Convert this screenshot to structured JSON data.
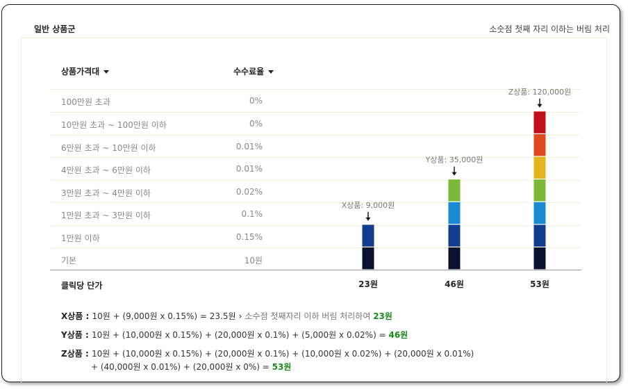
{
  "header": {
    "title": "일반 상품군",
    "note": "소숫점 첫째 자리 이하는 버림 처리"
  },
  "table": {
    "col_range": "상품가격대",
    "col_rate": "수수료율",
    "rows": [
      {
        "range": "100만원 초과",
        "rate": "0%"
      },
      {
        "range": "10만원 초과 ~ 100만원 이하",
        "rate": "0%"
      },
      {
        "range": "6만원 초과 ~ 10만원 이하",
        "rate": "0.01%"
      },
      {
        "range": "4만원 초과 ~ 6만원 이하",
        "rate": "0.01%"
      },
      {
        "range": "3만원 초과 ~ 4만원 이하",
        "rate": "0.02%"
      },
      {
        "range": "1만원 초과 ~ 3만원 이하",
        "rate": "0.1%"
      },
      {
        "range": "1만원 이하",
        "rate": "0.15%"
      },
      {
        "range": "기본",
        "rate": "10원"
      }
    ],
    "cpc_label": "클릭당 단가"
  },
  "chart_data": {
    "type": "bar",
    "stacked": true,
    "categories": [
      "X상품",
      "Y상품",
      "Z상품"
    ],
    "product_labels": [
      "X상품: 9,000원",
      "Y상품: 35,000원",
      "Z상품: 120,000원"
    ],
    "segments_from_bottom": [
      "기본",
      "1만원 이하",
      "1만원 초과 ~ 3만원 이하",
      "3만원 초과 ~ 4만원 이하",
      "4만원 초과 ~ 6만원 이하",
      "6만원 초과 ~ 10만원 이하",
      "10만원 초과 ~ 100만원 이하"
    ],
    "segment_colors": [
      "#0b1230",
      "#123c8e",
      "#1a8bd2",
      "#7bb937",
      "#e3b61b",
      "#e0481d",
      "#c1101c"
    ],
    "segments_filled": [
      2,
      4,
      7
    ],
    "totals": [
      "23원",
      "46원",
      "53원"
    ],
    "total_values": [
      23,
      46,
      53
    ]
  },
  "formulas": [
    {
      "name": "X상품",
      "expr": "10원 + (9,000원 x 0.15%) = 23.5원",
      "note": "소수점 첫째자리 이하 버림 처리하여",
      "result": "23원"
    },
    {
      "name": "Y상품",
      "expr": "10원 + (10,000원 x 0.15%) + (20,000원 x 0.1%) + (5,000원 x 0.02%) =",
      "result": "46원"
    },
    {
      "name": "Z상품",
      "expr": "10원 + (10,000원 x 0.15%) + (20,000원 x 0.1%) + (10,000원 x 0.02%) + (20,000원 x 0.01%)",
      "expr2": "+ (40,000원 x 0.01%) + (20,000원 x 0%) =",
      "result": "53원"
    }
  ]
}
